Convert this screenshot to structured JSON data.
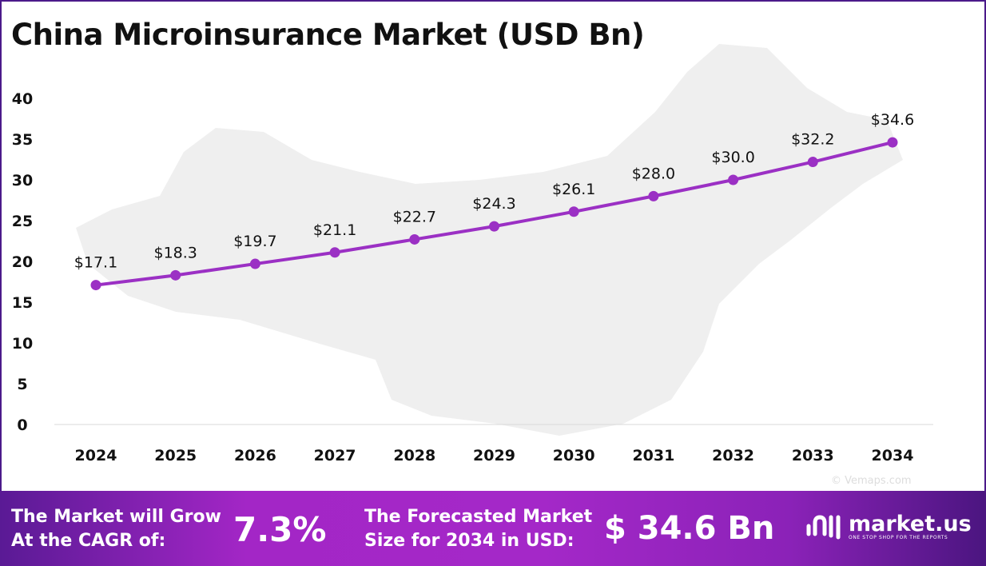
{
  "chart_data": {
    "type": "line",
    "title": "China Microinsurance Market (USD Bn)",
    "categories": [
      "2024",
      "2025",
      "2026",
      "2027",
      "2028",
      "2029",
      "2030",
      "2031",
      "2032",
      "2033",
      "2034"
    ],
    "values": [
      17.1,
      18.3,
      19.7,
      21.1,
      22.7,
      24.3,
      26.1,
      28.0,
      30.0,
      32.2,
      34.6
    ],
    "data_labels": [
      "$17.1",
      "$18.3",
      "$19.7",
      "$21.1",
      "$22.7",
      "$24.3",
      "$26.1",
      "$28.0",
      "$30.0",
      "$32.2",
      "$34.6"
    ],
    "yticks": [
      "0",
      "5",
      "10",
      "15",
      "20",
      "25",
      "30",
      "35",
      "40"
    ],
    "ylim": [
      0,
      40
    ],
    "xlabel": "",
    "ylabel": "",
    "grid": false,
    "line_color": "#9b30c4"
  },
  "watermark": "© Vemaps.com",
  "footer": {
    "cagr_label_line1": "The Market will Grow",
    "cagr_label_line2": "At the CAGR of:",
    "cagr_value": "7.3%",
    "forecast_label_line1": "The Forecasted Market",
    "forecast_label_line2": "Size for 2034 in USD:",
    "forecast_value": "$ 34.6 Bn",
    "brand_name": "market.us",
    "brand_tagline": "ONE STOP SHOP FOR THE REPORTS"
  }
}
